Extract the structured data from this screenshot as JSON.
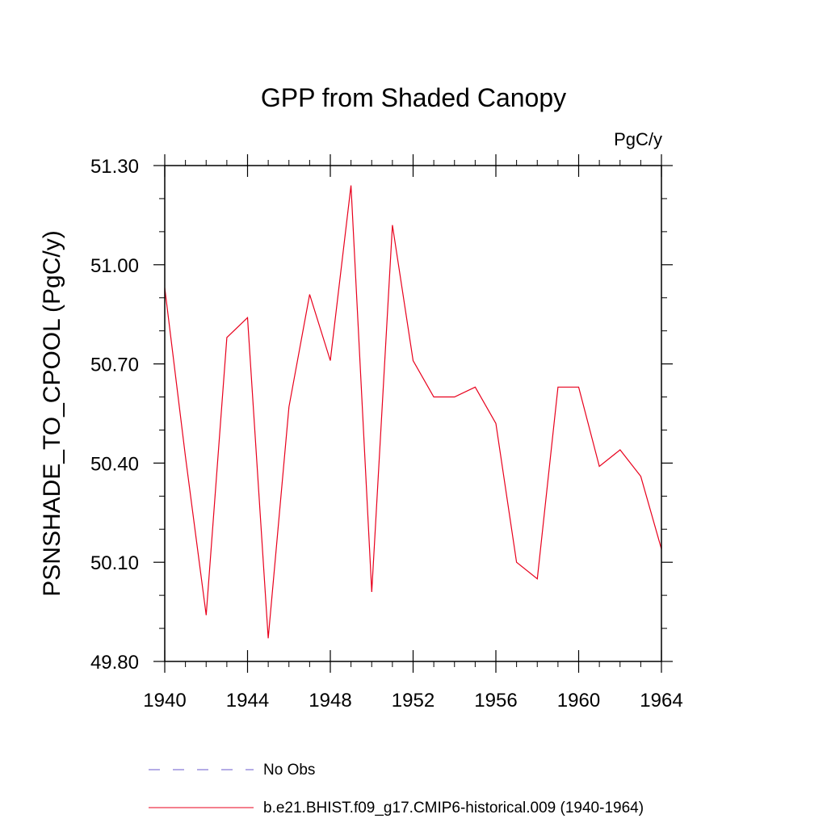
{
  "chart_data": {
    "type": "line",
    "title": "GPP from Shaded Canopy",
    "units_label": "PgC/y",
    "ylabel": "PSNSHADE_TO_CPOOL  (PgC/y)",
    "xlabel": "",
    "xlim": [
      1940,
      1964
    ],
    "ylim": [
      49.8,
      51.3
    ],
    "x_ticks": [
      1940,
      1944,
      1948,
      1952,
      1956,
      1960,
      1964
    ],
    "x_tick_labels": [
      "1940",
      "1944",
      "1948",
      "1952",
      "1956",
      "1960",
      "1964"
    ],
    "y_ticks": [
      49.8,
      50.1,
      50.4,
      50.7,
      51.0,
      51.3
    ],
    "y_tick_labels": [
      "49.80",
      "50.10",
      "50.40",
      "50.70",
      "51.00",
      "51.30"
    ],
    "series": [
      {
        "name": "b.e21.BHIST.f09_g17.CMIP6-historical.009 (1940-1964)",
        "color": "#e8001c",
        "x": [
          1940,
          1941,
          1942,
          1943,
          1944,
          1945,
          1946,
          1947,
          1948,
          1949,
          1950,
          1951,
          1952,
          1953,
          1954,
          1955,
          1956,
          1957,
          1958,
          1959,
          1960,
          1961,
          1962,
          1963,
          1964
        ],
        "values": [
          50.93,
          50.42,
          49.94,
          50.78,
          50.84,
          49.87,
          50.57,
          50.91,
          50.71,
          51.24,
          50.01,
          51.12,
          50.71,
          50.6,
          50.6,
          50.63,
          50.52,
          50.1,
          50.05,
          50.63,
          50.63,
          50.39,
          50.44,
          50.36,
          50.14
        ]
      }
    ],
    "legend": [
      {
        "label": "No Obs",
        "color": "#6a5acd",
        "style": "dashed"
      },
      {
        "label": "b.e21.BHIST.f09_g17.CMIP6-historical.009 (1940-1964)",
        "color": "#e8001c",
        "style": "solid"
      }
    ],
    "legend_position": "bottom",
    "grid": false
  }
}
